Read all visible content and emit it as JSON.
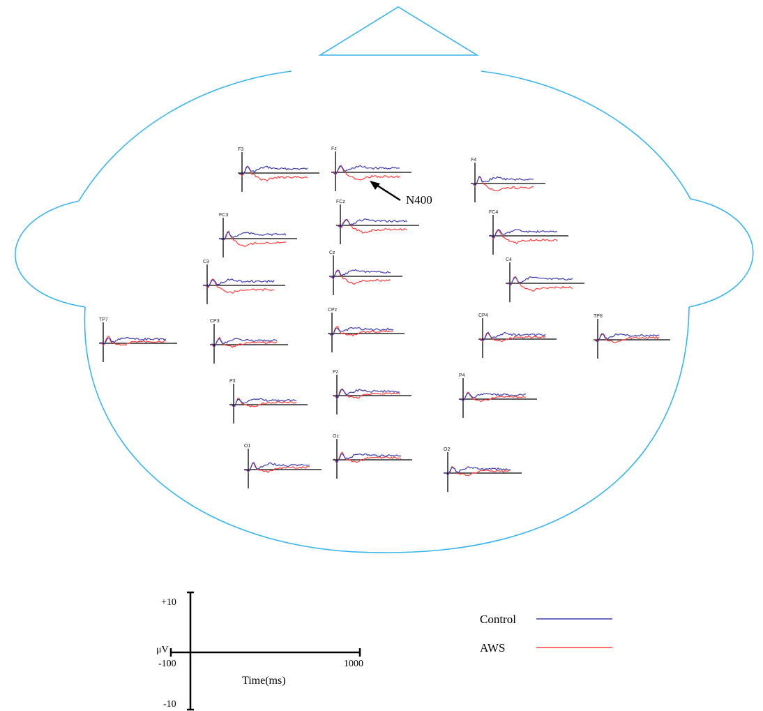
{
  "annotation": {
    "label": "N400"
  },
  "electrodes": [
    {
      "id": "F3",
      "label": "F3"
    },
    {
      "id": "Fz",
      "label": "Fz"
    },
    {
      "id": "F4",
      "label": "F4"
    },
    {
      "id": "FC3",
      "label": "FC3"
    },
    {
      "id": "FCz",
      "label": "FCz"
    },
    {
      "id": "FC4",
      "label": "FC4"
    },
    {
      "id": "C3",
      "label": "C3"
    },
    {
      "id": "Cz",
      "label": "Cz"
    },
    {
      "id": "C4",
      "label": "C4"
    },
    {
      "id": "TP7",
      "label": "TP7"
    },
    {
      "id": "CP3",
      "label": "CP3"
    },
    {
      "id": "CPz",
      "label": "CPz"
    },
    {
      "id": "CP4",
      "label": "CP4"
    },
    {
      "id": "TP8",
      "label": "TP8"
    },
    {
      "id": "P3",
      "label": "P3"
    },
    {
      "id": "Pz",
      "label": "Pz"
    },
    {
      "id": "P4",
      "label": "P4"
    },
    {
      "id": "O1",
      "label": "O1"
    },
    {
      "id": "Oz",
      "label": "Oz"
    },
    {
      "id": "O2",
      "label": "O2"
    }
  ],
  "scale": {
    "y_top": "+10",
    "y_unit": "μV",
    "y_bottom": "-10",
    "x_start": "-100",
    "x_end": "1000",
    "x_label": "Time(ms)"
  },
  "legend": [
    {
      "label": "Control",
      "color": "#3b3bb0"
    },
    {
      "label": "AWS",
      "color": "#ff3b3b"
    }
  ],
  "colors": {
    "head_outline": "#3ab4ec",
    "axes": "#000000"
  }
}
